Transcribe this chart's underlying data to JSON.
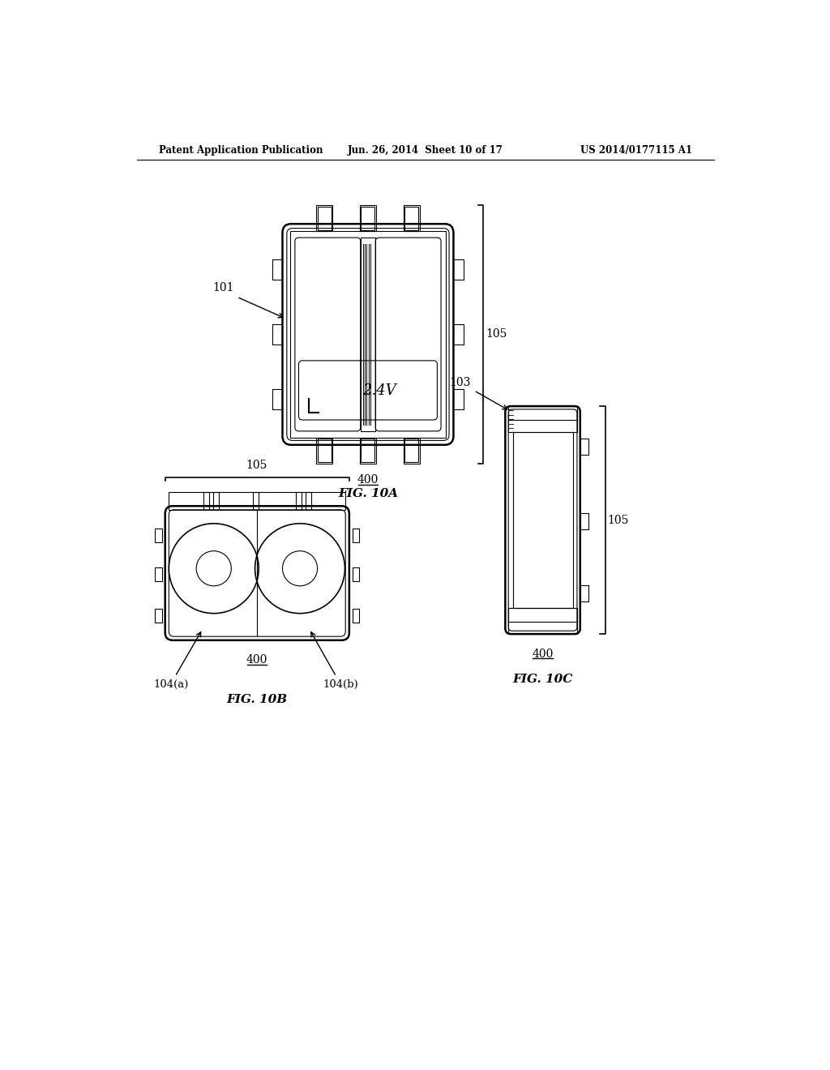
{
  "header_left": "Patent Application Publication",
  "header_mid": "Jun. 26, 2014  Sheet 10 of 17",
  "header_right": "US 2014/0177115 A1",
  "background_color": "#ffffff",
  "line_color": "#000000",
  "fig10a_label": "FIG. 10A",
  "fig10b_label": "FIG. 10B",
  "fig10c_label": "FIG. 10C",
  "ref_400": "400",
  "ref_101": "101",
  "ref_105": "105",
  "ref_103": "103",
  "ref_104a": "104(a)",
  "ref_104b": "104(b)",
  "voltage_label": "2.4V"
}
